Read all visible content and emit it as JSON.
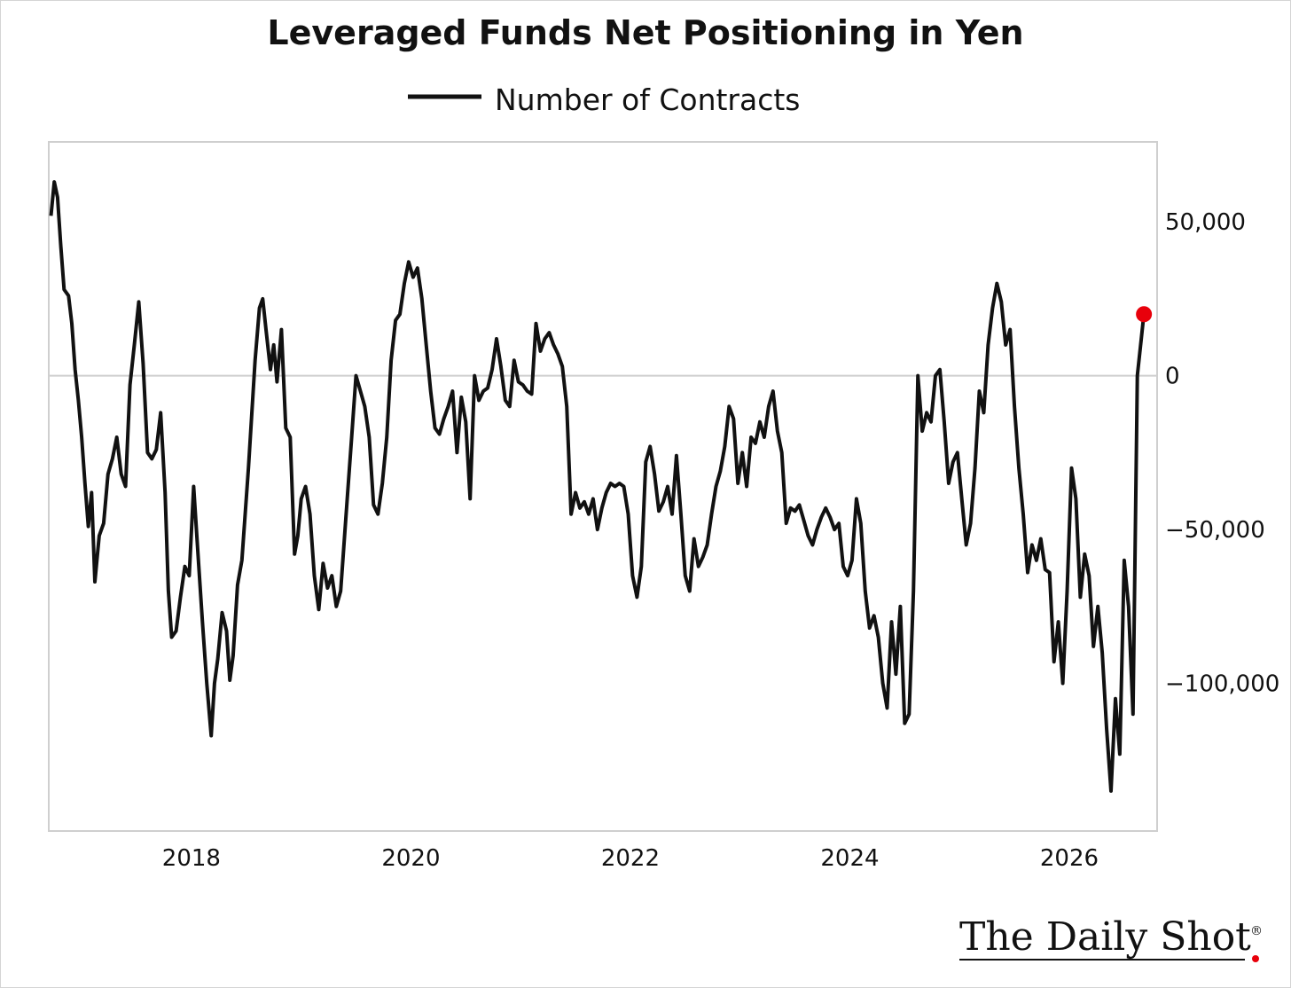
{
  "chart_data": {
    "type": "line",
    "title": "Leveraged Funds Net Positioning in Yen",
    "subtitle": "",
    "xlabel": "",
    "ylabel": "",
    "xlim": [
      2016.7,
      2026.8
    ],
    "ylim": [
      -148000,
      76000
    ],
    "x_ticks": [
      2018,
      2020,
      2022,
      2024,
      2026
    ],
    "x_tick_labels": [
      "2018",
      "2020",
      "2022",
      "2024",
      "2026"
    ],
    "y_ticks": [
      50000,
      0,
      -50000,
      -100000
    ],
    "y_tick_labels": [
      "50,000",
      "0",
      "−50,000",
      "−100,000"
    ],
    "y_axis_side": "right",
    "grid": "zero line only",
    "legend_position": "top-center",
    "series": [
      {
        "name": "Number of Contracts",
        "color": "#111111",
        "marker_last": {
          "color": "#e8000b"
        },
        "points": [
          [
            2016.72,
            52000
          ],
          [
            2016.75,
            63000
          ],
          [
            2016.78,
            58000
          ],
          [
            2016.81,
            42000
          ],
          [
            2016.84,
            28000
          ],
          [
            2016.88,
            26000
          ],
          [
            2016.91,
            17000
          ],
          [
            2016.94,
            2000
          ],
          [
            2016.97,
            -8000
          ],
          [
            2017.0,
            -20000
          ],
          [
            2017.03,
            -35000
          ],
          [
            2017.06,
            -49000
          ],
          [
            2017.09,
            -38000
          ],
          [
            2017.12,
            -67000
          ],
          [
            2017.16,
            -52000
          ],
          [
            2017.2,
            -48000
          ],
          [
            2017.24,
            -32000
          ],
          [
            2017.28,
            -27000
          ],
          [
            2017.32,
            -20000
          ],
          [
            2017.36,
            -32000
          ],
          [
            2017.4,
            -36000
          ],
          [
            2017.44,
            -3000
          ],
          [
            2017.48,
            10000
          ],
          [
            2017.52,
            24000
          ],
          [
            2017.56,
            4000
          ],
          [
            2017.6,
            -25000
          ],
          [
            2017.64,
            -27000
          ],
          [
            2017.68,
            -24000
          ],
          [
            2017.72,
            -12000
          ],
          [
            2017.76,
            -38000
          ],
          [
            2017.79,
            -70000
          ],
          [
            2017.82,
            -85000
          ],
          [
            2017.86,
            -83000
          ],
          [
            2017.9,
            -72000
          ],
          [
            2017.94,
            -62000
          ],
          [
            2017.98,
            -65000
          ],
          [
            2018.02,
            -36000
          ],
          [
            2018.06,
            -58000
          ],
          [
            2018.1,
            -80000
          ],
          [
            2018.14,
            -100000
          ],
          [
            2018.18,
            -117000
          ],
          [
            2018.21,
            -100000
          ],
          [
            2018.24,
            -92000
          ],
          [
            2018.28,
            -77000
          ],
          [
            2018.32,
            -83000
          ],
          [
            2018.35,
            -99000
          ],
          [
            2018.38,
            -91000
          ],
          [
            2018.42,
            -68000
          ],
          [
            2018.46,
            -60000
          ],
          [
            2018.52,
            -30000
          ],
          [
            2018.58,
            5000
          ],
          [
            2018.62,
            22000
          ],
          [
            2018.65,
            25000
          ],
          [
            2018.68,
            15000
          ],
          [
            2018.72,
            2000
          ],
          [
            2018.75,
            10000
          ],
          [
            2018.78,
            -2000
          ],
          [
            2018.82,
            15000
          ],
          [
            2018.86,
            -17000
          ],
          [
            2018.9,
            -20000
          ],
          [
            2018.94,
            -58000
          ],
          [
            2018.97,
            -52000
          ],
          [
            2019.0,
            -40000
          ],
          [
            2019.04,
            -36000
          ],
          [
            2019.08,
            -45000
          ],
          [
            2019.12,
            -65000
          ],
          [
            2019.16,
            -76000
          ],
          [
            2019.2,
            -61000
          ],
          [
            2019.24,
            -69000
          ],
          [
            2019.28,
            -65000
          ],
          [
            2019.32,
            -75000
          ],
          [
            2019.36,
            -70000
          ],
          [
            2019.42,
            -40000
          ],
          [
            2019.46,
            -20000
          ],
          [
            2019.5,
            0
          ],
          [
            2019.54,
            -5000
          ],
          [
            2019.58,
            -10000
          ],
          [
            2019.62,
            -20000
          ],
          [
            2019.66,
            -42000
          ],
          [
            2019.7,
            -45000
          ],
          [
            2019.74,
            -35000
          ],
          [
            2019.78,
            -20000
          ],
          [
            2019.82,
            5000
          ],
          [
            2019.86,
            18000
          ],
          [
            2019.9,
            20000
          ],
          [
            2019.94,
            30000
          ],
          [
            2019.98,
            37000
          ],
          [
            2020.02,
            32000
          ],
          [
            2020.06,
            35000
          ],
          [
            2020.1,
            25000
          ],
          [
            2020.14,
            10000
          ],
          [
            2020.18,
            -5000
          ],
          [
            2020.22,
            -17000
          ],
          [
            2020.26,
            -19000
          ],
          [
            2020.3,
            -14000
          ],
          [
            2020.34,
            -10000
          ],
          [
            2020.38,
            -5000
          ],
          [
            2020.42,
            -25000
          ],
          [
            2020.46,
            -7000
          ],
          [
            2020.5,
            -15000
          ],
          [
            2020.54,
            -40000
          ],
          [
            2020.58,
            0
          ],
          [
            2020.62,
            -8000
          ],
          [
            2020.66,
            -5000
          ],
          [
            2020.7,
            -4000
          ],
          [
            2020.74,
            2000
          ],
          [
            2020.78,
            12000
          ],
          [
            2020.82,
            3000
          ],
          [
            2020.86,
            -8000
          ],
          [
            2020.9,
            -10000
          ],
          [
            2020.94,
            5000
          ],
          [
            2020.98,
            -2000
          ],
          [
            2021.02,
            -3000
          ],
          [
            2021.06,
            -5000
          ],
          [
            2021.1,
            -6000
          ],
          [
            2021.14,
            17000
          ],
          [
            2021.18,
            8000
          ],
          [
            2021.22,
            12000
          ],
          [
            2021.26,
            14000
          ],
          [
            2021.3,
            10000
          ],
          [
            2021.34,
            7000
          ],
          [
            2021.38,
            3000
          ],
          [
            2021.42,
            -10000
          ],
          [
            2021.46,
            -45000
          ],
          [
            2021.5,
            -38000
          ],
          [
            2021.54,
            -43000
          ],
          [
            2021.58,
            -41000
          ],
          [
            2021.62,
            -45000
          ],
          [
            2021.66,
            -40000
          ],
          [
            2021.7,
            -50000
          ],
          [
            2021.74,
            -43000
          ],
          [
            2021.78,
            -38000
          ],
          [
            2021.82,
            -35000
          ],
          [
            2021.86,
            -36000
          ],
          [
            2021.9,
            -35000
          ],
          [
            2021.94,
            -36000
          ],
          [
            2021.98,
            -45000
          ],
          [
            2022.02,
            -65000
          ],
          [
            2022.06,
            -72000
          ],
          [
            2022.1,
            -62000
          ],
          [
            2022.14,
            -28000
          ],
          [
            2022.18,
            -23000
          ],
          [
            2022.22,
            -32000
          ],
          [
            2022.26,
            -44000
          ],
          [
            2022.3,
            -41000
          ],
          [
            2022.34,
            -36000
          ],
          [
            2022.38,
            -45000
          ],
          [
            2022.42,
            -26000
          ],
          [
            2022.46,
            -45000
          ],
          [
            2022.5,
            -65000
          ],
          [
            2022.54,
            -70000
          ],
          [
            2022.58,
            -53000
          ],
          [
            2022.62,
            -62000
          ],
          [
            2022.66,
            -59000
          ],
          [
            2022.7,
            -55000
          ],
          [
            2022.74,
            -45000
          ],
          [
            2022.78,
            -36000
          ],
          [
            2022.82,
            -31000
          ],
          [
            2022.86,
            -23000
          ],
          [
            2022.9,
            -10000
          ],
          [
            2022.94,
            -14000
          ],
          [
            2022.98,
            -35000
          ],
          [
            2023.02,
            -25000
          ],
          [
            2023.06,
            -36000
          ],
          [
            2023.1,
            -20000
          ],
          [
            2023.14,
            -22000
          ],
          [
            2023.18,
            -15000
          ],
          [
            2023.22,
            -20000
          ],
          [
            2023.26,
            -10000
          ],
          [
            2023.3,
            -5000
          ],
          [
            2023.34,
            -18000
          ],
          [
            2023.38,
            -25000
          ],
          [
            2023.42,
            -48000
          ],
          [
            2023.46,
            -43000
          ],
          [
            2023.5,
            -44000
          ],
          [
            2023.54,
            -42000
          ],
          [
            2023.58,
            -47000
          ],
          [
            2023.62,
            -52000
          ],
          [
            2023.66,
            -55000
          ],
          [
            2023.7,
            -50000
          ],
          [
            2023.74,
            -46000
          ],
          [
            2023.78,
            -43000
          ],
          [
            2023.82,
            -46000
          ],
          [
            2023.86,
            -50000
          ],
          [
            2023.9,
            -48000
          ],
          [
            2023.94,
            -62000
          ],
          [
            2023.98,
            -65000
          ],
          [
            2024.02,
            -60000
          ],
          [
            2024.06,
            -40000
          ],
          [
            2024.1,
            -48000
          ],
          [
            2024.14,
            -70000
          ],
          [
            2024.18,
            -82000
          ],
          [
            2024.22,
            -78000
          ],
          [
            2024.26,
            -85000
          ],
          [
            2024.3,
            -100000
          ],
          [
            2024.34,
            -108000
          ],
          [
            2024.38,
            -80000
          ],
          [
            2024.42,
            -97000
          ],
          [
            2024.46,
            -75000
          ],
          [
            2024.5,
            -113000
          ],
          [
            2024.54,
            -110000
          ],
          [
            2024.58,
            -70000
          ],
          [
            2024.62,
            0
          ],
          [
            2024.66,
            -18000
          ],
          [
            2024.7,
            -12000
          ],
          [
            2024.74,
            -15000
          ],
          [
            2024.78,
            0
          ],
          [
            2024.82,
            2000
          ],
          [
            2024.86,
            -15000
          ],
          [
            2024.9,
            -35000
          ],
          [
            2024.94,
            -28000
          ],
          [
            2024.98,
            -25000
          ],
          [
            2025.02,
            -40000
          ],
          [
            2025.06,
            -55000
          ],
          [
            2025.1,
            -48000
          ],
          [
            2025.14,
            -30000
          ],
          [
            2025.18,
            -5000
          ],
          [
            2025.22,
            -12000
          ],
          [
            2025.26,
            10000
          ],
          [
            2025.3,
            22000
          ],
          [
            2025.34,
            30000
          ],
          [
            2025.38,
            24000
          ],
          [
            2025.42,
            10000
          ],
          [
            2025.46,
            15000
          ],
          [
            2025.5,
            -10000
          ],
          [
            2025.54,
            -30000
          ],
          [
            2025.58,
            -45000
          ],
          [
            2025.62,
            -64000
          ],
          [
            2025.66,
            -55000
          ],
          [
            2025.7,
            -60000
          ],
          [
            2025.74,
            -53000
          ],
          [
            2025.78,
            -63000
          ],
          [
            2025.82,
            -64000
          ],
          [
            2025.86,
            -93000
          ],
          [
            2025.9,
            -80000
          ],
          [
            2025.94,
            -100000
          ],
          [
            2025.98,
            -70000
          ],
          [
            2026.02,
            -30000
          ],
          [
            2026.06,
            -40000
          ],
          [
            2026.1,
            -72000
          ],
          [
            2026.14,
            -58000
          ],
          [
            2026.18,
            -65000
          ],
          [
            2026.22,
            -88000
          ],
          [
            2026.26,
            -75000
          ],
          [
            2026.3,
            -90000
          ],
          [
            2026.34,
            -115000
          ],
          [
            2026.38,
            -135000
          ],
          [
            2026.42,
            -105000
          ],
          [
            2026.46,
            -123000
          ],
          [
            2026.5,
            -60000
          ],
          [
            2026.54,
            -75000
          ],
          [
            2026.58,
            -110000
          ],
          [
            2026.62,
            0
          ],
          [
            2026.68,
            20000
          ]
        ]
      }
    ]
  },
  "brand": {
    "text": "The Daily Shot",
    "mark": "®",
    "dot_color": "#e8000b"
  }
}
